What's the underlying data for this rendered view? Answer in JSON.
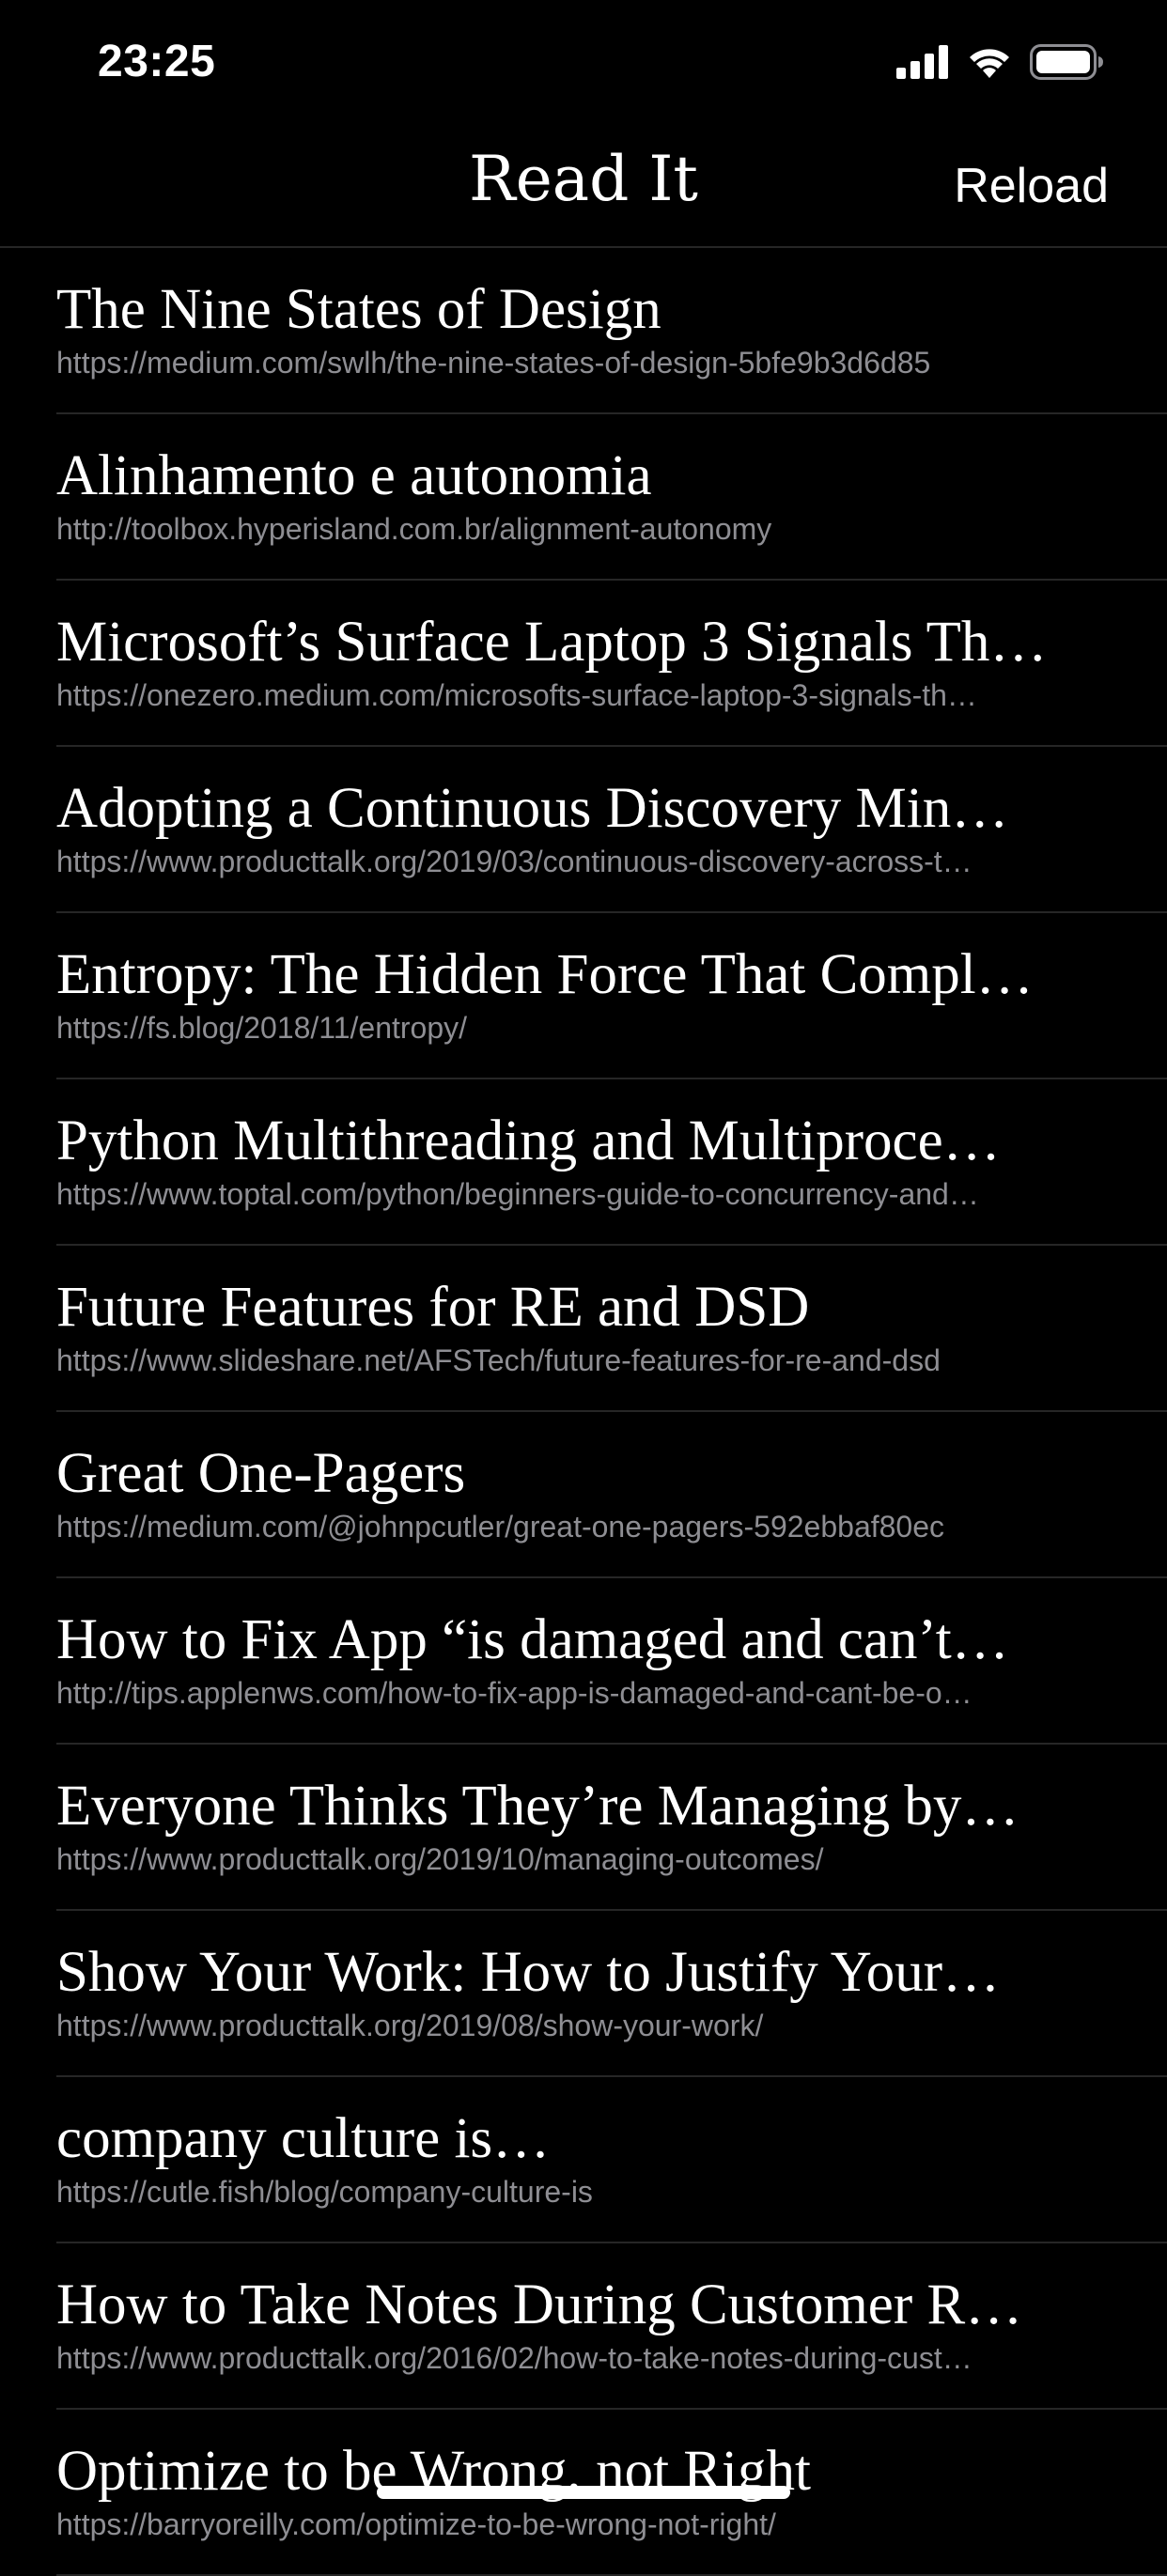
{
  "status_bar": {
    "time": "23:25",
    "icons": [
      "cellular-signal-icon",
      "wifi-icon",
      "battery-icon"
    ]
  },
  "nav": {
    "title": "Read It",
    "reload_label": "Reload"
  },
  "colors": {
    "background": "#000000",
    "title_text": "#ffffff",
    "url_text": "#8e8e93",
    "separator": "#262626"
  },
  "items": [
    {
      "title": "The Nine States of Design",
      "url": "https://medium.com/swlh/the-nine-states-of-design-5bfe9b3d6d85"
    },
    {
      "title": "Alinhamento e autonomia",
      "url": "http://toolbox.hyperisland.com.br/alignment-autonomy"
    },
    {
      "title": "Microsoft’s Surface Laptop 3 Signals Th…",
      "url": "https://onezero.medium.com/microsofts-surface-laptop-3-signals-th…"
    },
    {
      "title": "Adopting a Continuous Discovery Min…",
      "url": "https://www.producttalk.org/2019/03/continuous-discovery-across-t…"
    },
    {
      "title": "Entropy: The Hidden Force That Compl…",
      "url": "https://fs.blog/2018/11/entropy/"
    },
    {
      "title": "Python Multithreading and Multiproce…",
      "url": "https://www.toptal.com/python/beginners-guide-to-concurrency-and…"
    },
    {
      "title": "Future Features for RE and DSD",
      "url": "https://www.slideshare.net/AFSTech/future-features-for-re-and-dsd"
    },
    {
      "title": "Great One-Pagers",
      "url": "https://medium.com/@johnpcutler/great-one-pagers-592ebbaf80ec"
    },
    {
      "title": "How to Fix App “is damaged and can’t…",
      "url": "http://tips.applenws.com/how-to-fix-app-is-damaged-and-cant-be-o…"
    },
    {
      "title": "Everyone Thinks They’re Managing by…",
      "url": "https://www.producttalk.org/2019/10/managing-outcomes/"
    },
    {
      "title": "Show Your Work: How to Justify Your…",
      "url": "https://www.producttalk.org/2019/08/show-your-work/"
    },
    {
      "title": "company culture is…",
      "url": "https://cutle.fish/blog/company-culture-is"
    },
    {
      "title": "How to Take Notes During Customer R…",
      "url": "https://www.producttalk.org/2016/02/how-to-take-notes-during-cust…"
    },
    {
      "title": "Optimize to be Wrong, not Right",
      "url": "https://barryoreilly.com/optimize-to-be-wrong-not-right/"
    }
  ]
}
